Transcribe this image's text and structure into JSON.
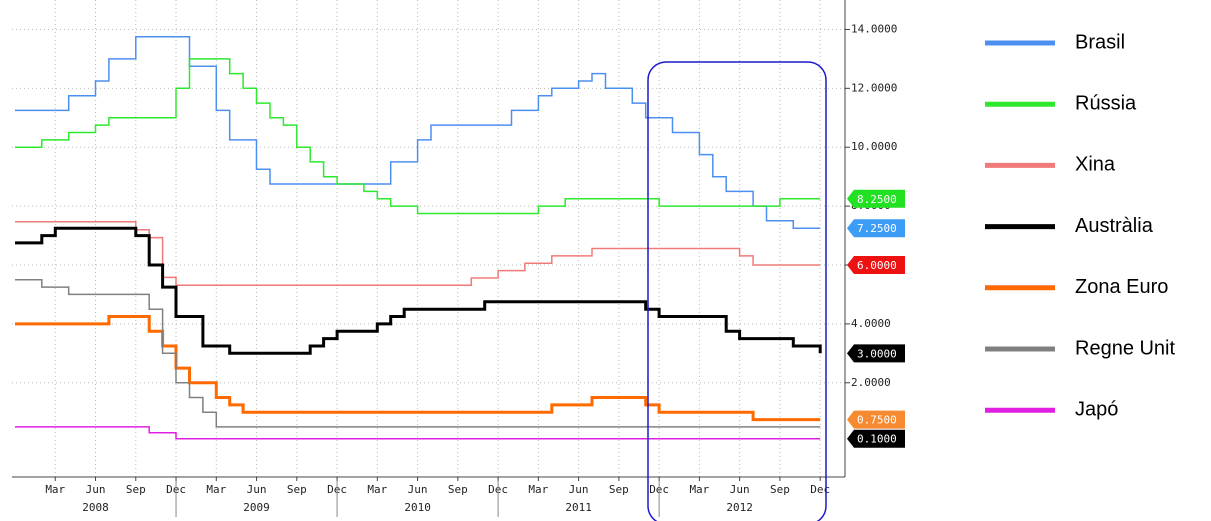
{
  "chart_data": {
    "type": "line",
    "x": [
      "2007-12",
      "2008-01",
      "2008-02",
      "2008-03",
      "2008-04",
      "2008-05",
      "2008-06",
      "2008-07",
      "2008-08",
      "2008-09",
      "2008-10",
      "2008-11",
      "2008-12",
      "2009-01",
      "2009-02",
      "2009-03",
      "2009-04",
      "2009-05",
      "2009-06",
      "2009-07",
      "2009-08",
      "2009-09",
      "2009-10",
      "2009-11",
      "2009-12",
      "2010-01",
      "2010-02",
      "2010-03",
      "2010-04",
      "2010-05",
      "2010-06",
      "2010-07",
      "2010-08",
      "2010-09",
      "2010-10",
      "2010-11",
      "2010-12",
      "2011-01",
      "2011-02",
      "2011-03",
      "2011-04",
      "2011-05",
      "2011-06",
      "2011-07",
      "2011-08",
      "2011-09",
      "2011-10",
      "2011-11",
      "2011-12",
      "2012-01",
      "2012-02",
      "2012-03",
      "2012-04",
      "2012-05",
      "2012-06",
      "2012-07",
      "2012-08",
      "2012-09",
      "2012-10",
      "2012-11",
      "2012-12"
    ],
    "series": [
      {
        "name": "Brasil",
        "color": "#4d8ff0",
        "line_width": 1.5,
        "end_label": "7.2500",
        "end_label_color": "#3d9cf5",
        "values": [
          11.25,
          11.25,
          11.25,
          11.25,
          11.75,
          11.75,
          12.25,
          13,
          13,
          13.75,
          13.75,
          13.75,
          13.75,
          12.75,
          12.75,
          11.25,
          10.25,
          10.25,
          9.25,
          8.75,
          8.75,
          8.75,
          8.75,
          8.75,
          8.75,
          8.75,
          8.75,
          8.75,
          9.5,
          9.5,
          10.25,
          10.75,
          10.75,
          10.75,
          10.75,
          10.75,
          10.75,
          11.25,
          11.25,
          11.75,
          12,
          12,
          12.25,
          12.5,
          12,
          12,
          11.5,
          11,
          11,
          10.5,
          10.5,
          9.75,
          9,
          8.5,
          8.5,
          8,
          7.5,
          7.5,
          7.25,
          7.25,
          7.25
        ]
      },
      {
        "name": "Rússia",
        "color": "#2ee82e",
        "line_width": 1.5,
        "end_label": "8.2500",
        "end_label_color": "#22e022",
        "values": [
          10,
          10,
          10.25,
          10.25,
          10.5,
          10.5,
          10.75,
          11,
          11,
          11,
          11,
          11,
          12,
          13,
          13,
          13,
          12.5,
          12,
          11.5,
          11,
          10.75,
          10,
          9.5,
          9,
          8.75,
          8.75,
          8.5,
          8.25,
          8,
          8,
          7.75,
          7.75,
          7.75,
          7.75,
          7.75,
          7.75,
          7.75,
          7.75,
          7.75,
          8,
          8,
          8.25,
          8.25,
          8.25,
          8.25,
          8.25,
          8.25,
          8.25,
          8,
          8,
          8,
          8,
          8,
          8,
          8,
          8,
          8,
          8.25,
          8.25,
          8.25,
          8.25
        ]
      },
      {
        "name": "Xina",
        "color": "#f07a7a",
        "line_width": 1.5,
        "end_label": "6.0000",
        "end_label_color": "#ee1111",
        "values": [
          7.47,
          7.47,
          7.47,
          7.47,
          7.47,
          7.47,
          7.47,
          7.47,
          7.47,
          7.2,
          6.93,
          5.58,
          5.31,
          5.31,
          5.31,
          5.31,
          5.31,
          5.31,
          5.31,
          5.31,
          5.31,
          5.31,
          5.31,
          5.31,
          5.31,
          5.31,
          5.31,
          5.31,
          5.31,
          5.31,
          5.31,
          5.31,
          5.31,
          5.31,
          5.56,
          5.56,
          5.81,
          5.81,
          6.06,
          6.06,
          6.31,
          6.31,
          6.31,
          6.56,
          6.56,
          6.56,
          6.56,
          6.56,
          6.56,
          6.56,
          6.56,
          6.56,
          6.56,
          6.56,
          6.31,
          6,
          6,
          6,
          6,
          6,
          6
        ]
      },
      {
        "name": "Austràlia",
        "color": "#000000",
        "line_width": 3,
        "end_label": "3.0000",
        "end_label_color": "#000000",
        "values": [
          6.75,
          6.75,
          7,
          7.25,
          7.25,
          7.25,
          7.25,
          7.25,
          7.25,
          7,
          6,
          5.25,
          4.25,
          4.25,
          3.25,
          3.25,
          3,
          3,
          3,
          3,
          3,
          3,
          3.25,
          3.5,
          3.75,
          3.75,
          3.75,
          4,
          4.25,
          4.5,
          4.5,
          4.5,
          4.5,
          4.5,
          4.5,
          4.75,
          4.75,
          4.75,
          4.75,
          4.75,
          4.75,
          4.75,
          4.75,
          4.75,
          4.75,
          4.75,
          4.75,
          4.5,
          4.25,
          4.25,
          4.25,
          4.25,
          4.25,
          3.75,
          3.5,
          3.5,
          3.5,
          3.5,
          3.25,
          3.25,
          3
        ]
      },
      {
        "name": "Zona Euro",
        "color": "#ff6a00",
        "line_width": 3,
        "end_label": "0.7500",
        "end_label_color": "#f58a30",
        "values": [
          4,
          4,
          4,
          4,
          4,
          4,
          4,
          4.25,
          4.25,
          4.25,
          3.75,
          3.25,
          2.5,
          2,
          2,
          1.5,
          1.25,
          1,
          1,
          1,
          1,
          1,
          1,
          1,
          1,
          1,
          1,
          1,
          1,
          1,
          1,
          1,
          1,
          1,
          1,
          1,
          1,
          1,
          1,
          1,
          1.25,
          1.25,
          1.25,
          1.5,
          1.5,
          1.5,
          1.5,
          1.25,
          1,
          1,
          1,
          1,
          1,
          1,
          1,
          0.75,
          0.75,
          0.75,
          0.75,
          0.75,
          0.75
        ]
      },
      {
        "name": "Regne Unit",
        "color": "#808080",
        "line_width": 1.5,
        "values": [
          5.5,
          5.5,
          5.25,
          5.25,
          5,
          5,
          5,
          5,
          5,
          5,
          4.5,
          3,
          2,
          1.5,
          1,
          0.5,
          0.5,
          0.5,
          0.5,
          0.5,
          0.5,
          0.5,
          0.5,
          0.5,
          0.5,
          0.5,
          0.5,
          0.5,
          0.5,
          0.5,
          0.5,
          0.5,
          0.5,
          0.5,
          0.5,
          0.5,
          0.5,
          0.5,
          0.5,
          0.5,
          0.5,
          0.5,
          0.5,
          0.5,
          0.5,
          0.5,
          0.5,
          0.5,
          0.5,
          0.5,
          0.5,
          0.5,
          0.5,
          0.5,
          0.5,
          0.5,
          0.5,
          0.5,
          0.5,
          0.5,
          0.5
        ]
      },
      {
        "name": "Japó",
        "color": "#e020e0",
        "line_width": 1.5,
        "end_label": "0.1000",
        "end_label_color": "#000000",
        "values": [
          0.5,
          0.5,
          0.5,
          0.5,
          0.5,
          0.5,
          0.5,
          0.5,
          0.5,
          0.5,
          0.3,
          0.3,
          0.1,
          0.1,
          0.1,
          0.1,
          0.1,
          0.1,
          0.1,
          0.1,
          0.1,
          0.1,
          0.1,
          0.1,
          0.1,
          0.1,
          0.1,
          0.1,
          0.1,
          0.1,
          0.1,
          0.1,
          0.1,
          0.1,
          0.1,
          0.1,
          0.1,
          0.1,
          0.1,
          0.1,
          0.1,
          0.1,
          0.1,
          0.1,
          0.1,
          0.1,
          0.1,
          0.1,
          0.1,
          0.1,
          0.1,
          0.1,
          0.1,
          0.1,
          0.1,
          0.1,
          0.1,
          0.1,
          0.1,
          0.1,
          0.1
        ]
      }
    ],
    "xlim": [
      "2007-12",
      "2013-02"
    ],
    "xticks": [
      {
        "value": "2008-03",
        "label": "Mar"
      },
      {
        "value": "2008-06",
        "label": "Jun"
      },
      {
        "value": "2008-09",
        "label": "Sep"
      },
      {
        "value": "2008-12",
        "label": "Dec"
      },
      {
        "value": "2009-03",
        "label": "Mar"
      },
      {
        "value": "2009-06",
        "label": "Jun"
      },
      {
        "value": "2009-09",
        "label": "Sep"
      },
      {
        "value": "2009-12",
        "label": "Dec"
      },
      {
        "value": "2010-03",
        "label": "Mar"
      },
      {
        "value": "2010-06",
        "label": "Jun"
      },
      {
        "value": "2010-09",
        "label": "Sep"
      },
      {
        "value": "2010-12",
        "label": "Dec"
      },
      {
        "value": "2011-03",
        "label": "Mar"
      },
      {
        "value": "2011-06",
        "label": "Jun"
      },
      {
        "value": "2011-09",
        "label": "Sep"
      },
      {
        "value": "2011-12",
        "label": "Dec"
      },
      {
        "value": "2012-03",
        "label": "Mar"
      },
      {
        "value": "2012-06",
        "label": "Jun"
      },
      {
        "value": "2012-09",
        "label": "Sep"
      },
      {
        "value": "2012-12",
        "label": "Dec"
      }
    ],
    "xgroups": [
      {
        "value": "2008-06",
        "label": "2008"
      },
      {
        "value": "2009-06",
        "label": "2009"
      },
      {
        "value": "2010-06",
        "label": "2010"
      },
      {
        "value": "2011-06",
        "label": "2011"
      },
      {
        "value": "2012-06",
        "label": "2012"
      }
    ],
    "ylim": [
      -1.2,
      15
    ],
    "yticks": [
      {
        "value": 2,
        "label": "2.0000"
      },
      {
        "value": 4,
        "label": "4.0000"
      },
      {
        "value": 6,
        "label": "6.0000"
      },
      {
        "value": 8,
        "label": "8.0000"
      },
      {
        "value": 10,
        "label": "10.0000"
      },
      {
        "value": 12,
        "label": "12.0000"
      },
      {
        "value": 14,
        "label": "14.0000"
      }
    ],
    "grid": true,
    "legend": "right"
  }
}
